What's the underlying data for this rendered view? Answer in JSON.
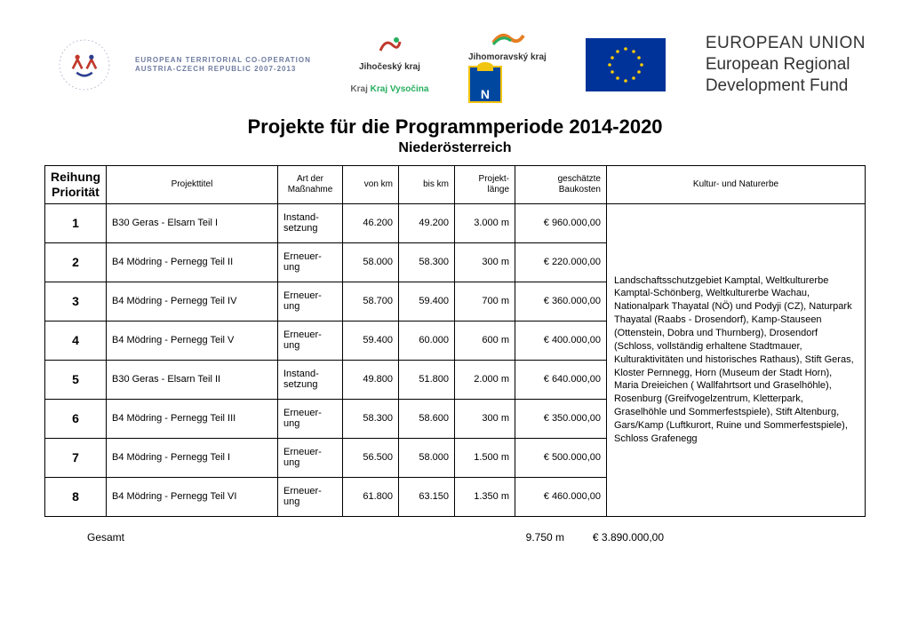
{
  "header": {
    "coop_text_line1": "EUROPEAN TERRITORIAL CO-OPERATION",
    "coop_text_line2": "AUSTRIA-CZECH REPUBLIC 2007-2013",
    "jihocesky": "Jihočeský kraj",
    "vysocina": "Kraj Vysočina",
    "jihomoravsky": "Jihomoravský kraj",
    "eu_line1": "EUROPEAN UNION",
    "eu_line2": "European Regional",
    "eu_line3": "Development Fund"
  },
  "title": "Projekte für die Programmperiode 2014-2020",
  "subtitle": "Niederösterreich",
  "columns": {
    "rank": "Reihung Priorität",
    "project": "Projekttitel",
    "art": "Art der Maßnahme",
    "von": "von km",
    "bis": "bis km",
    "len": "Projekt-länge",
    "cost": "geschätzte Baukosten",
    "culture": "Kultur- und Naturerbe"
  },
  "rows": [
    {
      "rank": "1",
      "title": "B30 Geras - Elsarn Teil I",
      "art": "Instand-setzung",
      "von": "46.200",
      "bis": "49.200",
      "len": "3.000 m",
      "cost": "€ 960.000,00"
    },
    {
      "rank": "2",
      "title": "B4 Mödring - Pernegg Teil II",
      "art": "Erneuer-ung",
      "von": "58.000",
      "bis": "58.300",
      "len": "300 m",
      "cost": "€ 220.000,00"
    },
    {
      "rank": "3",
      "title": "B4 Mödring - Pernegg Teil IV",
      "art": "Erneuer-ung",
      "von": "58.700",
      "bis": "59.400",
      "len": "700 m",
      "cost": "€ 360.000,00"
    },
    {
      "rank": "4",
      "title": "B4 Mödring - Pernegg Teil V",
      "art": "Erneuer-ung",
      "von": "59.400",
      "bis": "60.000",
      "len": "600 m",
      "cost": "€ 400.000,00"
    },
    {
      "rank": "5",
      "title": "B30 Geras - Elsarn Teil II",
      "art": "Instand-setzung",
      "von": "49.800",
      "bis": "51.800",
      "len": "2.000 m",
      "cost": "€ 640.000,00"
    },
    {
      "rank": "6",
      "title": "B4 Mödring - Pernegg Teil III",
      "art": "Erneuer-ung",
      "von": "58.300",
      "bis": "58.600",
      "len": "300 m",
      "cost": "€ 350.000,00"
    },
    {
      "rank": "7",
      "title": "B4 Mödring - Pernegg Teil I",
      "art": "Erneuer-ung",
      "von": "56.500",
      "bis": "58.000",
      "len": "1.500 m",
      "cost": "€ 500.000,00"
    },
    {
      "rank": "8",
      "title": "B4 Mödring - Pernegg Teil VI",
      "art": "Erneuer-ung",
      "von": "61.800",
      "bis": "63.150",
      "len": "1.350 m",
      "cost": "€ 460.000,00"
    }
  ],
  "culture_text": "Landschaftsschutzgebiet Kamptal, Weltkulturerbe Kamptal-Schönberg, Weltkulturerbe Wachau, Nationalpark Thayatal (NÖ) und Podyji (CZ), Naturpark Thayatal (Raabs - Drosendorf), Kamp-Stauseen (Ottenstein, Dobra und Thurnberg), Drosendorf (Schloss, vollständig erhaltene Stadtmauer, Kulturaktivitäten und historisches Rathaus), Stift Geras, Kloster Pernnegg, Horn (Museum der Stadt Horn), Maria Dreieichen ( Wallfahrtsort und Graselhöhle), Rosenburg (Greifvogelzentrum, Kletterpark, Graselhöhle und Sommerfestspiele), Stift Altenburg, Gars/Kamp (Luftkurort, Ruine und Sommerfestspiele), Schloss Grafenegg",
  "totals": {
    "label": "Gesamt",
    "len": "9.750 m",
    "cost": "€ 3.890.000,00"
  },
  "style": {
    "border_color": "#000000",
    "bg_color": "#ffffff",
    "header_fontsize": 10,
    "body_fontsize": 11,
    "title_fontsize": 22,
    "subtitle_fontsize": 16,
    "eu_flag_bg": "#003399",
    "eu_star_color": "#ffcc00",
    "coop_text_color": "#6e7ba0"
  }
}
